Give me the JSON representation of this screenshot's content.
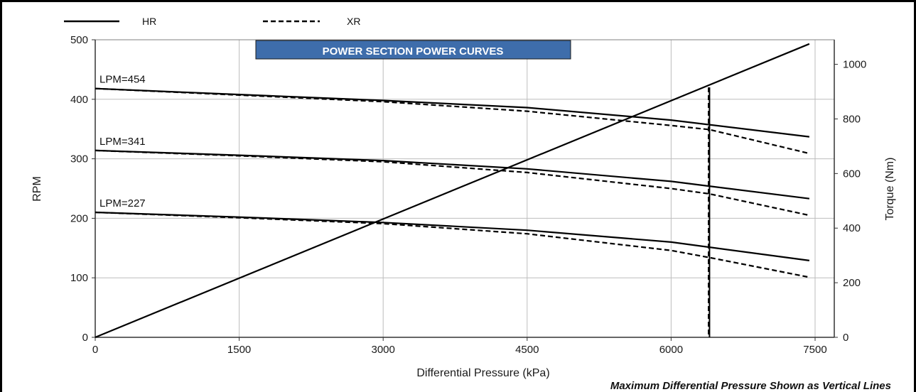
{
  "chart_data": {
    "type": "line",
    "title": "POWER SECTION POWER CURVES",
    "xlabel": "Differential Pressure (kPa)",
    "ylabel": "RPM",
    "y2label": "Torque (Nm)",
    "xlim": [
      0,
      7700
    ],
    "ylim": [
      0,
      500
    ],
    "y2lim": [
      0,
      1090
    ],
    "xticks": [
      0,
      1500,
      3000,
      4500,
      6000,
      7500
    ],
    "yticks": [
      0,
      100,
      200,
      300,
      400,
      500
    ],
    "y2ticks": [
      0,
      200,
      400,
      600,
      800,
      1000
    ],
    "grid": true,
    "legend": [
      {
        "name": "HR",
        "style": "solid"
      },
      {
        "name": "XR",
        "style": "dashed"
      }
    ],
    "legend_position": "top-left",
    "lpm_labels": [
      {
        "text": "LPM=454",
        "y": 418
      },
      {
        "text": "LPM=341",
        "y": 314
      },
      {
        "text": "LPM=227",
        "y": 210
      }
    ],
    "series": [
      {
        "name": "HR",
        "flow": "LPM=454",
        "axis": "left",
        "style": "solid",
        "x": [
          0,
          1500,
          3000,
          4500,
          6000,
          7440
        ],
        "y": [
          418,
          408,
          398,
          386,
          365,
          337
        ]
      },
      {
        "name": "XR",
        "flow": "LPM=454",
        "axis": "left",
        "style": "dashed",
        "x": [
          0,
          1500,
          3000,
          4500,
          6000,
          6400,
          7440
        ],
        "y": [
          418,
          407,
          396,
          380,
          356,
          349,
          309
        ]
      },
      {
        "name": "HR",
        "flow": "LPM=341",
        "axis": "left",
        "style": "solid",
        "x": [
          0,
          1500,
          3000,
          4500,
          6000,
          7440
        ],
        "y": [
          314,
          306,
          297,
          283,
          262,
          233
        ]
      },
      {
        "name": "XR",
        "flow": "LPM=341",
        "axis": "left",
        "style": "dashed",
        "x": [
          0,
          1500,
          3000,
          4500,
          6000,
          6400,
          7440
        ],
        "y": [
          314,
          305,
          295,
          277,
          250,
          241,
          205
        ]
      },
      {
        "name": "HR",
        "flow": "LPM=227",
        "axis": "left",
        "style": "solid",
        "x": [
          0,
          1500,
          3000,
          4500,
          6000,
          7440
        ],
        "y": [
          210,
          202,
          193,
          180,
          160,
          129
        ]
      },
      {
        "name": "XR",
        "flow": "LPM=227",
        "axis": "left",
        "style": "dashed",
        "x": [
          0,
          1500,
          3000,
          4500,
          6000,
          6400,
          7440
        ],
        "y": [
          210,
          201,
          191,
          174,
          146,
          134,
          101
        ]
      },
      {
        "name": "Torque",
        "axis": "right",
        "style": "solid",
        "x": [
          0,
          7440
        ],
        "y": [
          0,
          1075
        ]
      }
    ],
    "max_pressure_lines": [
      {
        "name": "HR",
        "x": 6400,
        "style": "solid",
        "top": 420
      },
      {
        "name": "XR",
        "x": 6390,
        "style": "dashed",
        "top": 420
      }
    ],
    "footnote": "Maximum Differential Pressure Shown as Vertical Lines"
  }
}
